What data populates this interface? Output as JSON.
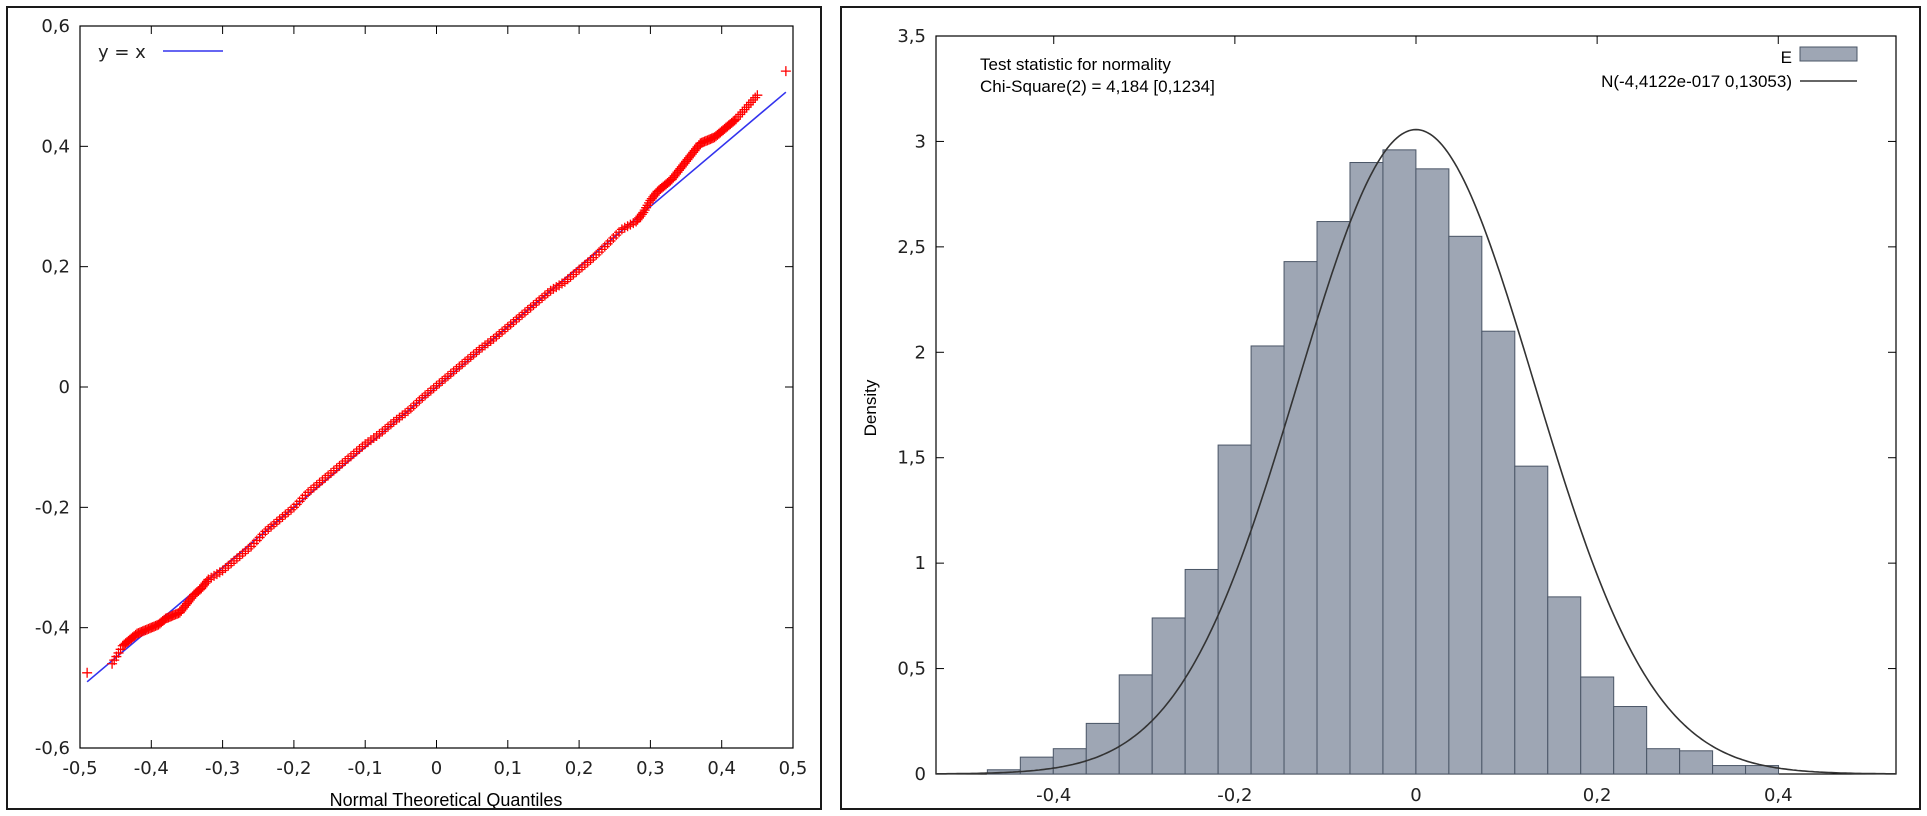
{
  "chart_data": [
    {
      "type": "scatter",
      "xlabel": "Normal Theoretical Quantiles",
      "ylabel": "",
      "xlim": [
        -0.5,
        0.5
      ],
      "ylim": [
        -0.6,
        0.6
      ],
      "xticks": [
        "-0,5",
        "-0,4",
        "-0,3",
        "-0,2",
        "-0,1",
        "0",
        "0,1",
        "0,2",
        "0,3",
        "0,4",
        "0,5"
      ],
      "yticks": [
        "-0,6",
        "-0,4",
        "-0,2",
        "0",
        "0,2",
        "0,4",
        "0,6"
      ],
      "legend": {
        "position": "top-left",
        "entries": [
          {
            "label": "y = x",
            "color": "#3333ee"
          }
        ]
      },
      "series": [
        {
          "name": "y = x",
          "kind": "line",
          "color": "#3333ee",
          "x": [
            -0.49,
            0.49
          ],
          "y": [
            -0.49,
            0.49
          ]
        },
        {
          "kind": "points",
          "marker": "+",
          "color": "#ff0000",
          "x": [
            -0.49,
            -0.455,
            -0.44,
            -0.43,
            -0.42,
            -0.41,
            -0.4,
            -0.39,
            -0.38,
            -0.37,
            -0.36,
            -0.35,
            -0.34,
            -0.33,
            -0.32,
            -0.3,
            -0.28,
            -0.26,
            -0.24,
            -0.22,
            -0.2,
            -0.18,
            -0.16,
            -0.14,
            -0.12,
            -0.1,
            -0.08,
            -0.06,
            -0.04,
            -0.02,
            0.0,
            0.02,
            0.04,
            0.06,
            0.08,
            0.1,
            0.12,
            0.14,
            0.16,
            0.18,
            0.2,
            0.22,
            0.24,
            0.26,
            0.28,
            0.29,
            0.3,
            0.31,
            0.32,
            0.33,
            0.34,
            0.35,
            0.36,
            0.37,
            0.38,
            0.39,
            0.4,
            0.41,
            0.42,
            0.435,
            0.45,
            0.49
          ],
          "y": [
            -0.475,
            -0.46,
            -0.43,
            -0.42,
            -0.41,
            -0.405,
            -0.4,
            -0.395,
            -0.385,
            -0.38,
            -0.375,
            -0.36,
            -0.345,
            -0.335,
            -0.32,
            -0.305,
            -0.285,
            -0.265,
            -0.24,
            -0.22,
            -0.2,
            -0.175,
            -0.155,
            -0.135,
            -0.115,
            -0.095,
            -0.078,
            -0.058,
            -0.04,
            -0.018,
            0.002,
            0.022,
            0.042,
            0.062,
            0.08,
            0.1,
            0.12,
            0.14,
            0.16,
            0.175,
            0.195,
            0.215,
            0.238,
            0.262,
            0.275,
            0.29,
            0.31,
            0.325,
            0.335,
            0.345,
            0.36,
            0.375,
            0.39,
            0.405,
            0.41,
            0.415,
            0.425,
            0.435,
            0.445,
            0.465,
            0.485,
            0.525
          ]
        }
      ]
    },
    {
      "type": "bar",
      "ylabel": "Density",
      "xlabel": "",
      "xlim": [
        -0.53,
        0.53
      ],
      "ylim": [
        0,
        3.5
      ],
      "xticks": [
        "-0,4",
        "-0,2",
        "0",
        "0,2",
        "0,4"
      ],
      "yticks": [
        "0",
        "0,5",
        "1",
        "1,5",
        "2",
        "2,5",
        "3",
        "3,5"
      ],
      "bin_width": 0.0364,
      "bin_centers": [
        -0.4915,
        -0.4551,
        -0.4187,
        -0.3823,
        -0.3459,
        -0.3095,
        -0.2731,
        -0.2367,
        -0.2003,
        -0.1639,
        -0.1275,
        -0.0911,
        -0.0547,
        -0.0183,
        0.0181,
        0.0545,
        0.0909,
        0.1273,
        0.1637,
        0.2001,
        0.2365,
        0.2729,
        0.3093,
        0.3457,
        0.3821,
        0.4185,
        0.4549
      ],
      "values": [
        0.0,
        0.02,
        0.08,
        0.12,
        0.24,
        0.47,
        0.74,
        0.97,
        1.56,
        2.03,
        2.43,
        2.62,
        2.9,
        2.96,
        2.87,
        2.55,
        2.1,
        1.46,
        0.84,
        0.46,
        0.32,
        0.12,
        0.11,
        0.04,
        0.04,
        0.0,
        0.0
      ],
      "bar_color": "#9ea6b4",
      "curve": {
        "label": "N(-4,4122e-017 0,13053)",
        "mean": 0.0,
        "sd": 0.13053,
        "color": "#333333"
      },
      "legend": {
        "position": "top-right",
        "entries": [
          {
            "label": "E",
            "kind": "bar"
          },
          {
            "label": "N(-4,4122e-017 0,13053)",
            "kind": "line"
          }
        ]
      },
      "annotation": {
        "line1": "Test statistic for normality",
        "line2": "Chi-Square(2) = 4,184 [0,1234]"
      }
    }
  ]
}
